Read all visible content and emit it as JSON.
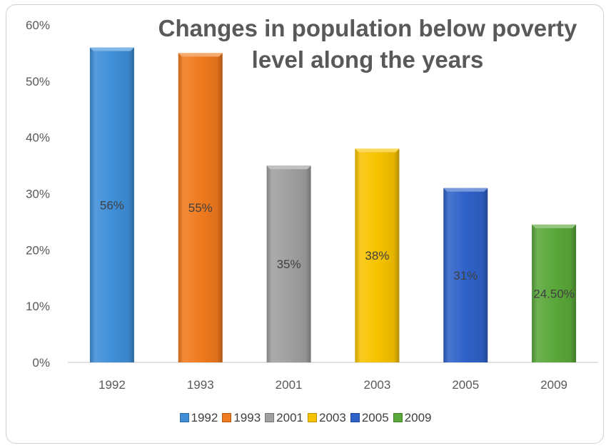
{
  "chart_data": {
    "type": "bar",
    "title_lines": [
      "Changes in population below poverty",
      "level along the years"
    ],
    "categories": [
      "1992",
      "1993",
      "2001",
      "2003",
      "2005",
      "2009"
    ],
    "values": [
      56,
      55,
      35,
      38,
      31,
      24.5
    ],
    "data_labels": [
      "56%",
      "55%",
      "35%",
      "38%",
      "31%",
      "24.50%"
    ],
    "colors": [
      "#3f8fd8",
      "#f07a1e",
      "#a0a0a0",
      "#f7c300",
      "#2f62c8",
      "#5aa83a"
    ],
    "ylim": [
      0,
      60
    ],
    "y_ticks": [
      0,
      10,
      20,
      30,
      40,
      50,
      60
    ],
    "y_tick_labels": [
      "0%",
      "10%",
      "20%",
      "30%",
      "40%",
      "50%",
      "60%"
    ],
    "grid": false,
    "legend": {
      "position": "bottom",
      "entries": [
        "1992",
        "1993",
        "2001",
        "2003",
        "2005",
        "2009"
      ]
    }
  }
}
